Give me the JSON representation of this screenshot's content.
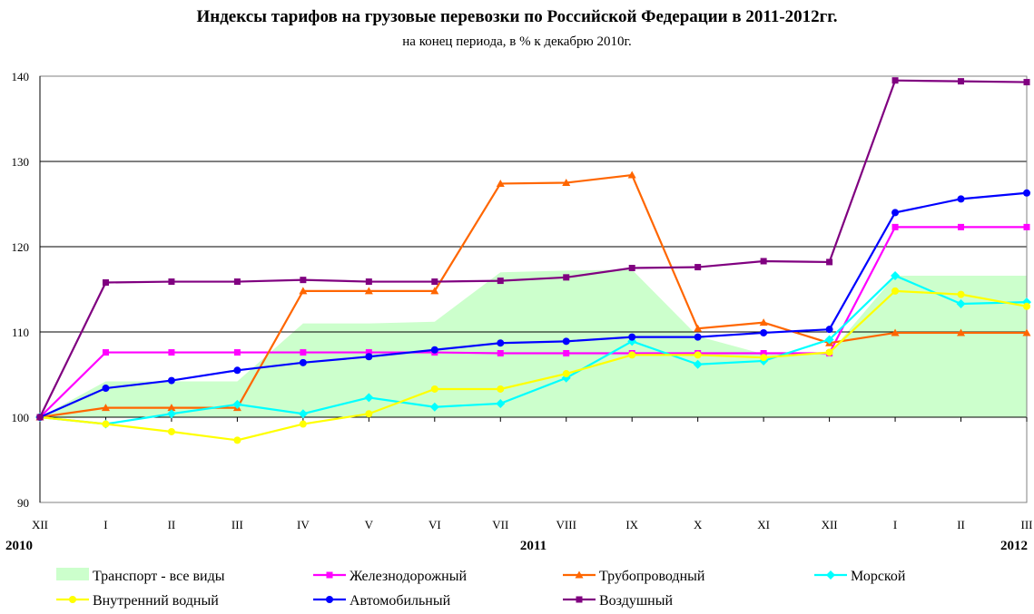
{
  "chart_data": {
    "type": "line",
    "title": "Индексы тарифов на грузовые перевозки по Российской Федерации в 2011-2012гг.",
    "subtitle": "на конец периода, в %  к декабрю 2010г.",
    "categories": [
      "XII",
      "I",
      "II",
      "III",
      "IV",
      "V",
      "VI",
      "VII",
      "VIII",
      "IX",
      "X",
      "XI",
      "XII",
      "I",
      "II",
      "III"
    ],
    "year_labels": [
      {
        "label": "2010",
        "index": 0
      },
      {
        "label": "2011",
        "index": 7.5
      },
      {
        "label": "2012",
        "index": 15
      }
    ],
    "ylim": [
      90,
      140
    ],
    "yticks": [
      90,
      100,
      110,
      120,
      130,
      140
    ],
    "grid": true,
    "legend_position": "bottom",
    "series": [
      {
        "name": "Транспорт - все виды",
        "kind": "area",
        "color": "#ccffcc",
        "values": [
          100,
          104.2,
          104.2,
          104.2,
          111,
          111,
          111.2,
          117,
          117.2,
          117.3,
          109.5,
          107.4,
          107.5,
          116.6,
          116.6,
          116.6
        ]
      },
      {
        "name": "Железнодорожный",
        "kind": "line",
        "color": "#ff00ff",
        "marker": "square",
        "values": [
          100,
          107.6,
          107.6,
          107.6,
          107.6,
          107.6,
          107.6,
          107.5,
          107.5,
          107.5,
          107.5,
          107.5,
          107.5,
          122.3,
          122.3,
          122.3
        ]
      },
      {
        "name": "Трубопроводный",
        "kind": "line",
        "color": "#ff6600",
        "marker": "triangle",
        "values": [
          100,
          101.1,
          101.1,
          101.1,
          114.8,
          114.8,
          114.8,
          127.4,
          127.5,
          128.4,
          110.4,
          111.1,
          108.7,
          109.9,
          109.9,
          109.9
        ]
      },
      {
        "name": "Морской",
        "kind": "line",
        "color": "#00ffff",
        "marker": "diamond",
        "values": [
          100,
          99.2,
          100.4,
          101.5,
          100.4,
          102.3,
          101.2,
          101.6,
          104.6,
          108.9,
          106.2,
          106.6,
          109.1,
          116.6,
          113.3,
          113.5
        ]
      },
      {
        "name": "Внутренний водный",
        "kind": "line",
        "color": "#ffff00",
        "marker": "circle",
        "values": [
          100,
          99.2,
          98.3,
          97.3,
          99.2,
          100.4,
          103.3,
          103.3,
          105.1,
          107.3,
          107.3,
          107.0,
          107.6,
          114.8,
          114.4,
          113.0
        ]
      },
      {
        "name": "Автомобильный",
        "kind": "line",
        "color": "#0000ff",
        "marker": "circle",
        "values": [
          100,
          103.4,
          104.3,
          105.5,
          106.4,
          107.1,
          107.9,
          108.7,
          108.9,
          109.4,
          109.4,
          109.9,
          110.3,
          124.0,
          125.6,
          126.3
        ]
      },
      {
        "name": "Воздушный",
        "kind": "line",
        "color": "#800080",
        "marker": "square",
        "values": [
          100,
          115.8,
          115.9,
          115.9,
          116.1,
          115.9,
          115.9,
          116.0,
          116.4,
          117.5,
          117.6,
          118.3,
          118.2,
          139.5,
          139.4,
          139.3
        ]
      }
    ]
  }
}
